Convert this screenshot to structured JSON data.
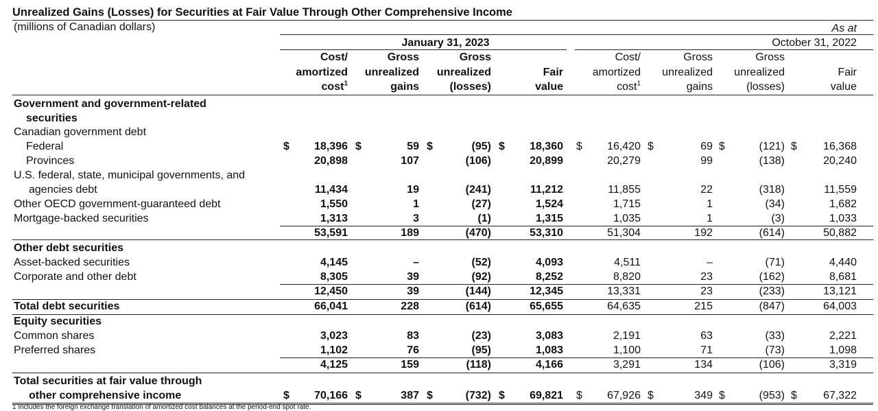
{
  "title": "Unrealized Gains (Losses) for Securities at Fair Value Through Other Comprehensive Income",
  "subtitle": "(millions of Canadian dollars)",
  "as_at": "As at",
  "periods": [
    "January 31, 2023",
    "October 31, 2022"
  ],
  "columns": [
    {
      "l1": "Cost/",
      "l2": "amortized",
      "l3": "cost",
      "sup": "1"
    },
    {
      "l1": "Gross",
      "l2": "unrealized",
      "l3": "gains",
      "sup": ""
    },
    {
      "l1": "Gross",
      "l2": "unrealized",
      "l3": "(losses)",
      "sup": ""
    },
    {
      "l1": "",
      "l2": "Fair",
      "l3": "value",
      "sup": ""
    },
    {
      "l1": "Cost/",
      "l2": "amortized",
      "l3": "cost",
      "sup": "1"
    },
    {
      "l1": "Gross",
      "l2": "unrealized",
      "l3": "gains",
      "sup": ""
    },
    {
      "l1": "Gross",
      "l2": "unrealized",
      "l3": "(losses)",
      "sup": ""
    },
    {
      "l1": "",
      "l2": "Fair",
      "l3": "value",
      "sup": ""
    }
  ],
  "currency": "$",
  "rows": [
    {
      "label": "Government and government-related",
      "bold": true,
      "indent": 0,
      "header": true
    },
    {
      "label": "securities",
      "bold": true,
      "indent": 1,
      "header": true
    },
    {
      "label": "Canadian government debt",
      "indent": 0,
      "header": true
    },
    {
      "label": "Federal",
      "indent": 1,
      "cur": true,
      "values": [
        "18,396",
        "59",
        "(95)",
        "18,360",
        "16,420",
        "69",
        "(121)",
        "16,368"
      ]
    },
    {
      "label": "Provinces",
      "indent": 1,
      "values": [
        "20,898",
        "107",
        "(106)",
        "20,899",
        "20,279",
        "99",
        "(138)",
        "20,240"
      ]
    },
    {
      "label": "U.S. federal, state, municipal governments, and",
      "indent": 0,
      "header": true
    },
    {
      "label": "agencies debt",
      "indent": 2,
      "values": [
        "11,434",
        "19",
        "(241)",
        "11,212",
        "11,855",
        "22",
        "(318)",
        "11,559"
      ]
    },
    {
      "label": "Other OECD government-guaranteed debt",
      "indent": 0,
      "values": [
        "1,550",
        "1",
        "(27)",
        "1,524",
        "1,715",
        "1",
        "(34)",
        "1,682"
      ]
    },
    {
      "label": "Mortgage-backed securities",
      "indent": 0,
      "values": [
        "1,313",
        "3",
        "(1)",
        "1,315",
        "1,035",
        "1",
        "(3)",
        "1,033"
      ]
    },
    {
      "label": "",
      "indent": 0,
      "values": [
        "53,591",
        "189",
        "(470)",
        "53,310",
        "51,304",
        "192",
        "(614)",
        "50,882"
      ]
    },
    {
      "label": "Other debt securities",
      "bold": true,
      "indent": 0,
      "header": true
    },
    {
      "label": "Asset-backed securities",
      "indent": 0,
      "values": [
        "4,145",
        "–",
        "(52)",
        "4,093",
        "4,511",
        "–",
        "(71)",
        "4,440"
      ]
    },
    {
      "label": "Corporate and other debt",
      "indent": 0,
      "values": [
        "8,305",
        "39",
        "(92)",
        "8,252",
        "8,820",
        "23",
        "(162)",
        "8,681"
      ]
    },
    {
      "label": "",
      "indent": 0,
      "values": [
        "12,450",
        "39",
        "(144)",
        "12,345",
        "13,331",
        "23",
        "(233)",
        "13,121"
      ]
    },
    {
      "label": "Total debt securities",
      "bold": true,
      "indent": 0,
      "values": [
        "66,041",
        "228",
        "(614)",
        "65,655",
        "64,635",
        "215",
        "(847)",
        "64,003"
      ]
    },
    {
      "label": "Equity securities",
      "bold": true,
      "indent": 0,
      "header": true
    },
    {
      "label": "Common shares",
      "indent": 0,
      "values": [
        "3,023",
        "83",
        "(23)",
        "3,083",
        "2,191",
        "63",
        "(33)",
        "2,221"
      ]
    },
    {
      "label": "Preferred shares",
      "indent": 0,
      "values": [
        "1,102",
        "76",
        "(95)",
        "1,083",
        "1,100",
        "71",
        "(73)",
        "1,098"
      ]
    },
    {
      "label": "",
      "indent": 0,
      "values": [
        "4,125",
        "159",
        "(118)",
        "4,166",
        "3,291",
        "134",
        "(106)",
        "3,319"
      ]
    },
    {
      "label": "Total securities at fair value through",
      "bold": true,
      "indent": 0,
      "header": true
    },
    {
      "label": "other comprehensive income",
      "bold": true,
      "indent": 2,
      "cur": true,
      "values": [
        "70,166",
        "387",
        "(732)",
        "69,821",
        "67,926",
        "349",
        "(953)",
        "67,322"
      ]
    }
  ],
  "footnote": "1 Includes the foreign exchange translation of amortized cost balances at the period-end spot rate."
}
